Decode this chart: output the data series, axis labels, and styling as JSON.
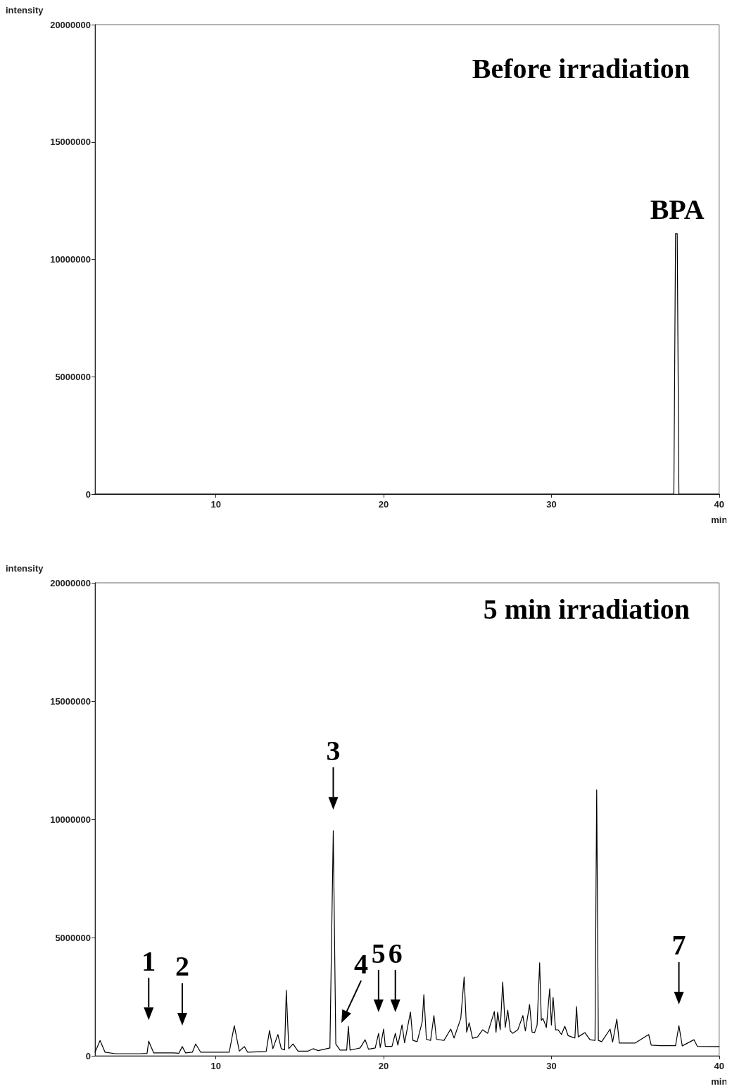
{
  "chart_data": [
    {
      "type": "line",
      "title": "Before irradiation",
      "xlabel": "min",
      "ylabel": "intensity",
      "xlim": [
        2.8,
        40
      ],
      "xticks": [
        10,
        20,
        30,
        40
      ],
      "ylim": [
        0,
        20000000
      ],
      "yticks": [
        0,
        5000000,
        10000000,
        15000000,
        20000000
      ],
      "marker": "none",
      "line_style": "solid",
      "series": [
        {
          "color": "#000000",
          "x": [
            2.8,
            37.3,
            37.4,
            37.5,
            37.6,
            40
          ],
          "values": [
            0,
            0,
            11100000,
            11100000,
            0,
            0
          ]
        }
      ],
      "annotations": [
        {
          "text": "BPA",
          "x": 37.5,
          "y": 11100000
        }
      ]
    },
    {
      "type": "line",
      "title": "5 min irradiation",
      "xlabel": "min",
      "ylabel": "intensity",
      "xlim": [
        2.8,
        40
      ],
      "xticks": [
        10,
        20,
        30,
        40
      ],
      "ylim": [
        0,
        20000000
      ],
      "yticks": [
        0,
        5000000,
        10000000,
        15000000,
        20000000
      ],
      "marker": "none",
      "line_style": "solid",
      "series": [
        {
          "color": "#000000",
          "x": [
            2.8,
            3.1,
            3.4,
            4,
            5.5,
            5.9,
            6.0,
            6.3,
            7.5,
            7.8,
            8.0,
            8.2,
            8.6,
            8.8,
            9.1,
            10.8,
            11.1,
            11.4,
            11.7,
            11.9,
            13.0,
            13.2,
            13.4,
            13.7,
            13.9,
            14.1,
            14.2,
            14.35,
            14.6,
            14.9,
            15.5,
            15.8,
            16.1,
            16.8,
            17.0,
            17.15,
            17.4,
            17.8,
            17.9,
            18.0,
            18.6,
            18.9,
            19.1,
            19.5,
            19.7,
            19.8,
            20.0,
            20.1,
            20.5,
            20.7,
            20.85,
            21.1,
            21.25,
            21.6,
            21.75,
            22.0,
            22.3,
            22.4,
            22.55,
            22.8,
            23.0,
            23.15,
            23.6,
            24.0,
            24.2,
            24.6,
            24.8,
            24.95,
            25.1,
            25.3,
            25.6,
            25.9,
            26.2,
            26.6,
            26.7,
            26.8,
            26.95,
            27.1,
            27.25,
            27.4,
            27.55,
            27.7,
            28.0,
            28.3,
            28.45,
            28.7,
            28.85,
            29.0,
            29.15,
            29.3,
            29.4,
            29.5,
            29.7,
            29.9,
            30.0,
            30.1,
            30.25,
            30.4,
            30.6,
            30.8,
            31.0,
            31.2,
            31.4,
            31.5,
            31.6,
            32.0,
            32.3,
            32.6,
            32.7,
            32.8,
            33.0,
            33.5,
            33.65,
            33.9,
            34.05,
            35.0,
            35.8,
            35.95,
            36.5,
            37.4,
            37.6,
            37.8,
            38.5,
            38.7,
            40
          ],
          "values": [
            150000,
            650000,
            150000,
            90000,
            90000,
            100000,
            620000,
            120000,
            120000,
            110000,
            390000,
            120000,
            150000,
            500000,
            150000,
            150000,
            1280000,
            200000,
            390000,
            150000,
            180000,
            1070000,
            300000,
            900000,
            300000,
            250000,
            2770000,
            300000,
            500000,
            200000,
            200000,
            300000,
            220000,
            330000,
            9520000,
            500000,
            240000,
            240000,
            1250000,
            240000,
            330000,
            680000,
            280000,
            330000,
            950000,
            350000,
            1130000,
            400000,
            400000,
            950000,
            450000,
            1310000,
            550000,
            1850000,
            650000,
            600000,
            1430000,
            2590000,
            700000,
            650000,
            1700000,
            700000,
            650000,
            1130000,
            750000,
            1580000,
            3330000,
            1000000,
            1400000,
            740000,
            800000,
            1100000,
            950000,
            1870000,
            1000000,
            1850000,
            1100000,
            3120000,
            1200000,
            1930000,
            1050000,
            950000,
            1100000,
            1700000,
            1050000,
            2170000,
            1000000,
            980000,
            1300000,
            3930000,
            1500000,
            1580000,
            1200000,
            2830000,
            1300000,
            2470000,
            1100000,
            1100000,
            900000,
            1250000,
            850000,
            800000,
            750000,
            2080000,
            800000,
            980000,
            680000,
            650000,
            11250000,
            650000,
            600000,
            1130000,
            580000,
            1550000,
            540000,
            540000,
            900000,
            450000,
            430000,
            430000,
            1280000,
            420000,
            680000,
            400000,
            390000
          ]
        }
      ],
      "annotations": [
        {
          "text": "1",
          "x": 6.0,
          "y": 620000
        },
        {
          "text": "2",
          "x": 8.0,
          "y": 390000
        },
        {
          "text": "3",
          "x": 17.0,
          "y": 9520000
        },
        {
          "text": "4",
          "x": 17.15,
          "y": 500000
        },
        {
          "text": "5",
          "x": 19.7,
          "y": 950000
        },
        {
          "text": "6",
          "x": 20.7,
          "y": 950000
        },
        {
          "text": "7",
          "x": 37.6,
          "y": 1280000
        }
      ]
    }
  ]
}
